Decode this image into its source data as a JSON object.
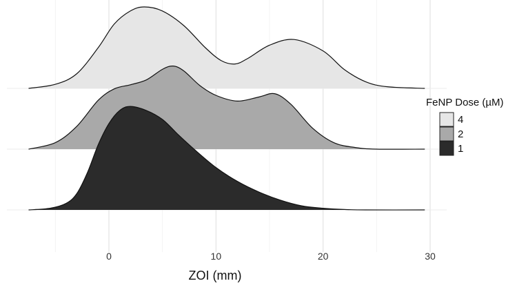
{
  "chart_data": {
    "type": "ridgeline",
    "title": "",
    "xlabel": "ZOI (mm)",
    "ylabel": "",
    "xlim": [
      -7.5,
      29.5
    ],
    "x_ticks": [
      "0",
      "10",
      "20",
      "30"
    ],
    "grid": true,
    "legend": {
      "title": "FeNP Dose (µM)",
      "position": "right",
      "entries": [
        "4",
        "2",
        "1"
      ]
    },
    "series": [
      {
        "name": "4",
        "color": "#e6e6e6",
        "x": [
          -7.5,
          -5,
          -3,
          -1,
          0.5,
          2,
          3.3,
          5,
          7,
          9,
          10.5,
          11.8,
          13,
          15,
          17.3,
          20,
          22,
          24,
          26,
          29.5
        ],
        "y": [
          0.0,
          0.05,
          0.18,
          0.5,
          0.79,
          0.95,
          1.0,
          0.95,
          0.77,
          0.5,
          0.34,
          0.3,
          0.37,
          0.53,
          0.6,
          0.46,
          0.23,
          0.08,
          0.02,
          0.0
        ]
      },
      {
        "name": "2",
        "color": "#a9a9a9",
        "x": [
          -7.5,
          -5,
          -3,
          -1,
          0.5,
          2,
          3.5,
          5,
          6,
          7,
          8.5,
          10,
          12,
          14,
          15.5,
          17,
          19,
          21,
          23,
          25,
          29.5
        ],
        "y": [
          0.0,
          0.08,
          0.28,
          0.6,
          0.74,
          0.79,
          0.85,
          0.98,
          1.02,
          0.96,
          0.78,
          0.66,
          0.59,
          0.64,
          0.68,
          0.55,
          0.26,
          0.08,
          0.02,
          0.0,
          0.0
        ]
      },
      {
        "name": "1",
        "color": "#2b2b2b",
        "x": [
          -7.5,
          -5.5,
          -4,
          -3,
          -2,
          -1,
          0,
          1,
          2,
          3.5,
          5,
          6.5,
          8,
          10,
          12,
          14,
          16,
          18,
          20,
          22,
          24,
          29.5
        ],
        "y": [
          0.0,
          0.02,
          0.08,
          0.2,
          0.46,
          0.8,
          1.06,
          1.22,
          1.27,
          1.22,
          1.11,
          0.92,
          0.74,
          0.52,
          0.35,
          0.22,
          0.12,
          0.05,
          0.02,
          0.005,
          0.0,
          0.0
        ]
      }
    ]
  }
}
